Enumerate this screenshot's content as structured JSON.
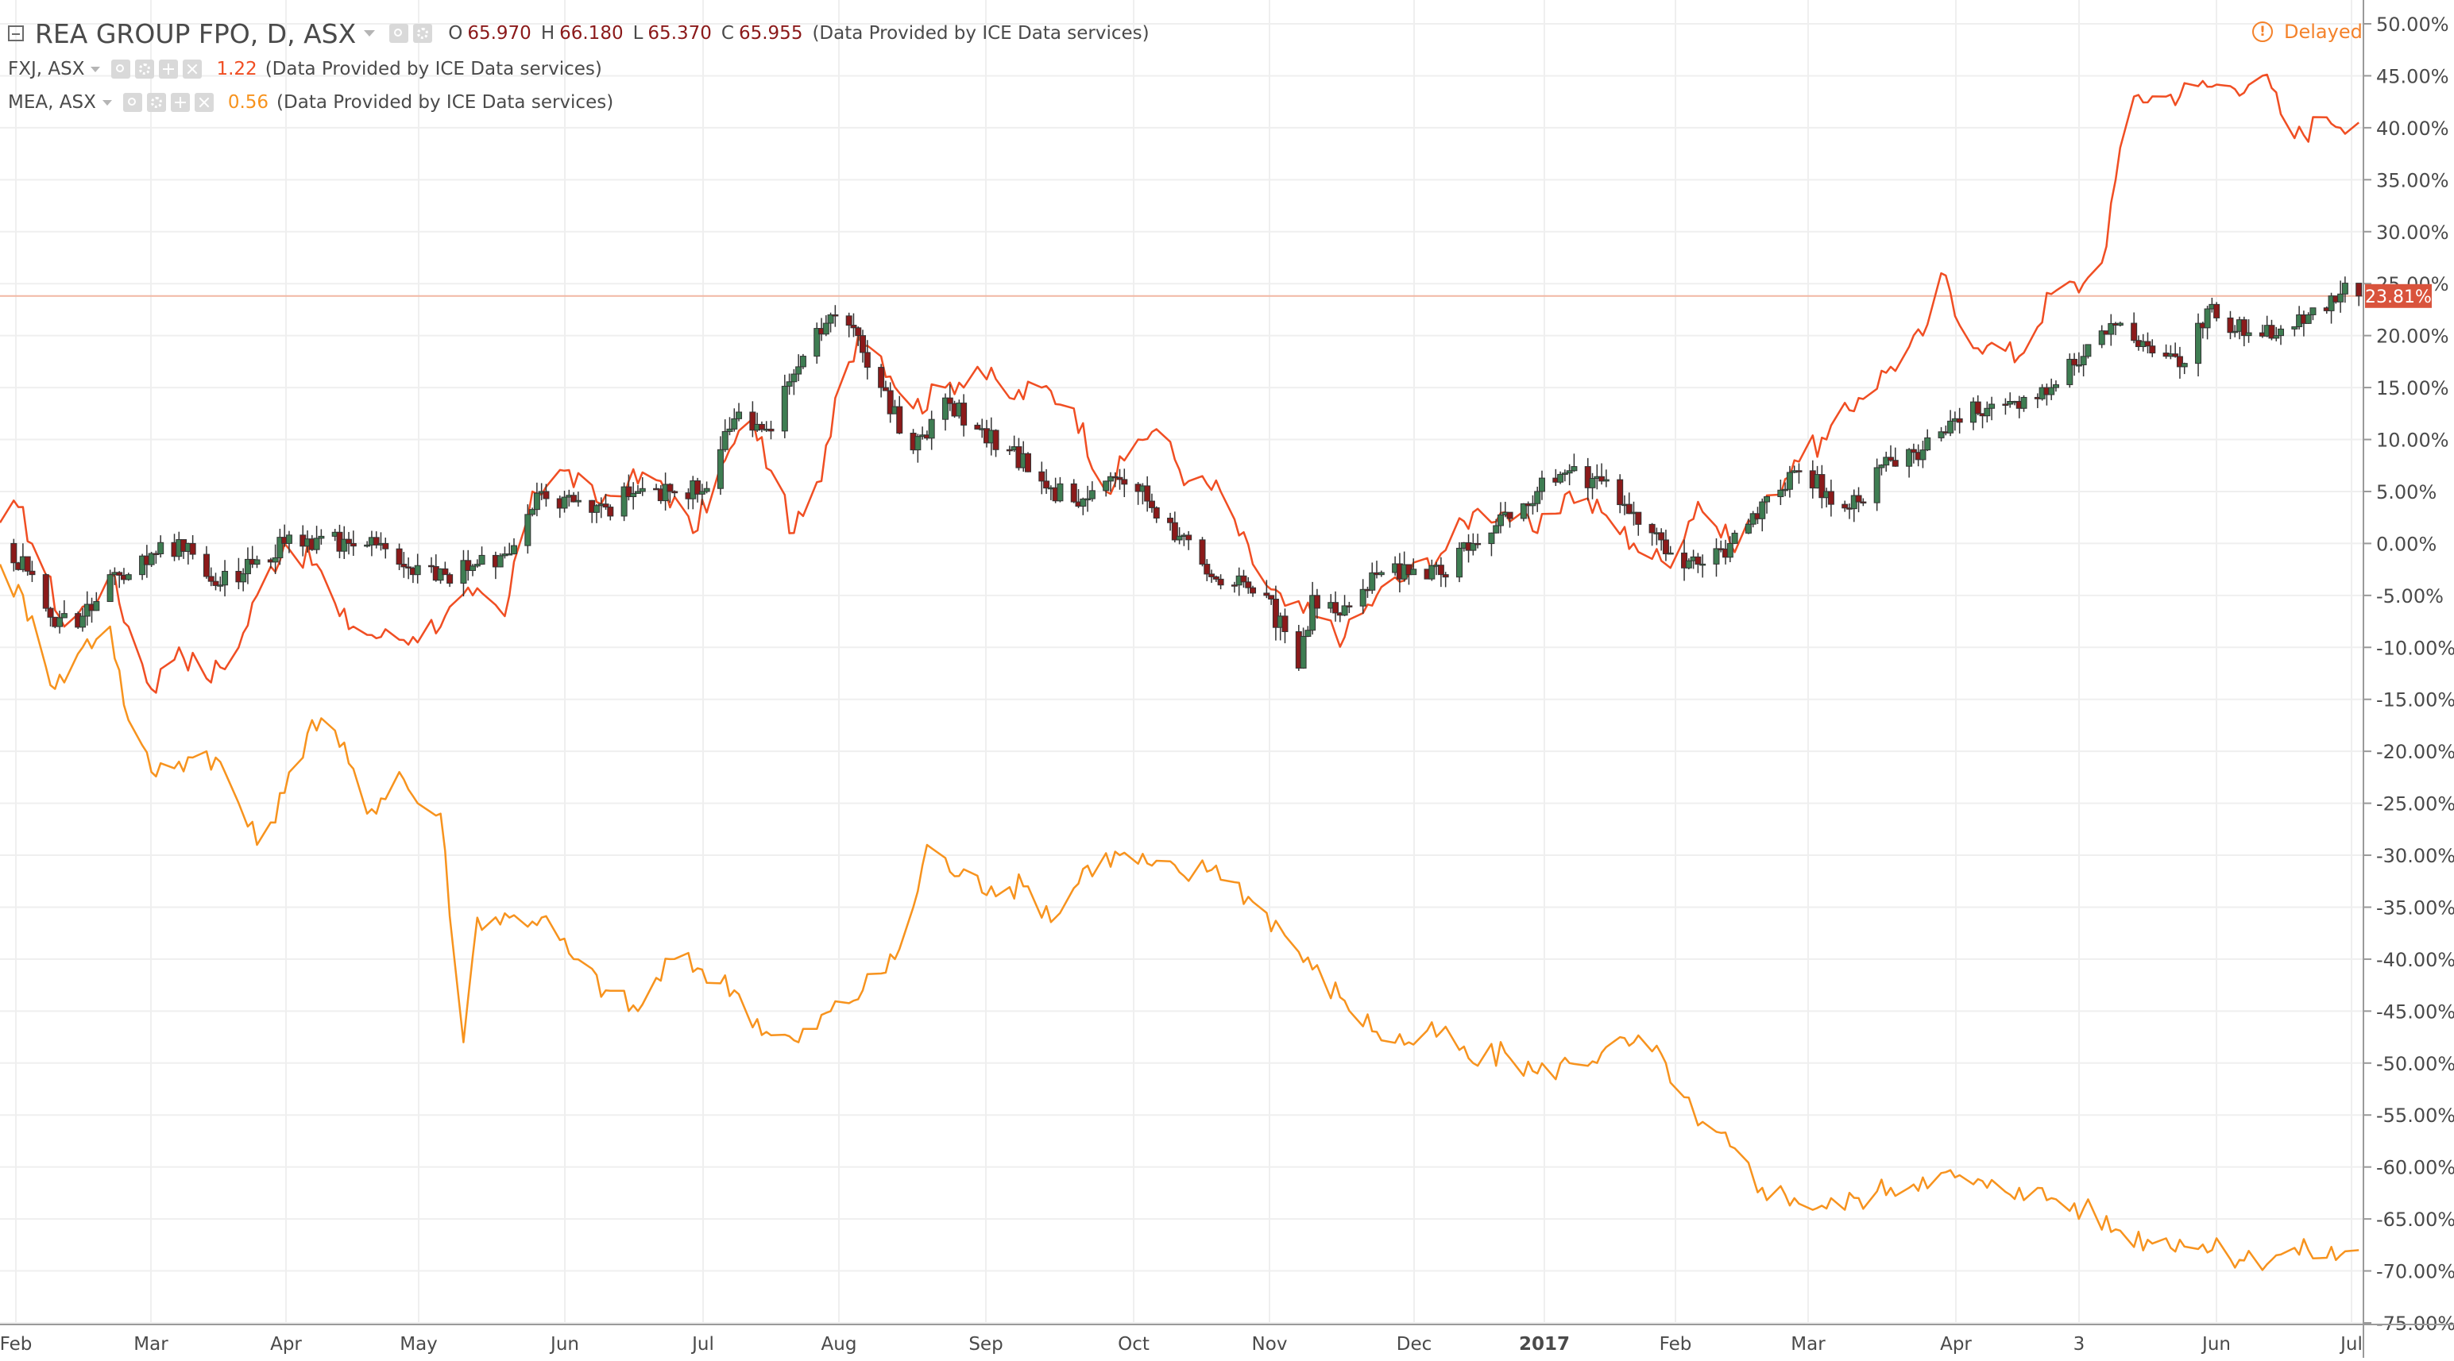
{
  "header": {
    "symbol_title": "REA GROUP FPO, D, ASX",
    "ohlc": {
      "o_label": "O",
      "o_value": "65.970",
      "h_label": "H",
      "h_value": "66.180",
      "l_label": "L",
      "l_value": "65.370",
      "c_label": "C",
      "c_value": "65.955"
    },
    "provider": "(Data Provided by ICE Data services)",
    "delayed_label": "Delayed",
    "delayed_icon_glyph": "!"
  },
  "compare_series": [
    {
      "symbol": "FXJ, ASX",
      "value": "1.22",
      "provider": "(Data Provided by ICE Data services)",
      "color": "#f04e23"
    },
    {
      "symbol": "MEA, ASX",
      "value": "0.56",
      "provider": "(Data Provided by ICE Data services)",
      "color": "#f7931e"
    }
  ],
  "colors": {
    "rea_up": "#3e7d52",
    "rea_down": "#8b1a1a",
    "fxj_line": "#f04e23",
    "mea_line": "#f7931e",
    "price_marker": "#d9533c",
    "grid": "#efefef",
    "axis_text": "#4a4a4a",
    "icon_gray": "#d9d9d9"
  },
  "chart_data": {
    "type": "line",
    "x_axis": {
      "tick_labels": [
        "Feb",
        "Mar",
        "Apr",
        "May",
        "Jun",
        "Jul",
        "Aug",
        "Sep",
        "Oct",
        "Nov",
        "Dec",
        "2017",
        "Feb",
        "Mar",
        "Apr",
        "3",
        "Jun",
        "Jul"
      ],
      "start": "2016-01-29",
      "end": "2017-06-27"
    },
    "y_axis": {
      "unit": "%",
      "position": "right",
      "min": -75,
      "max": 50,
      "tick_labels": [
        "50.00%",
        "45.00%",
        "40.00%",
        "35.00%",
        "30.00%",
        "25.00%",
        "20.00%",
        "15.00%",
        "10.00%",
        "5.00%",
        "0.00%",
        "-5.00%",
        "-10.00%",
        "-15.00%",
        "-20.00%",
        "-25.00%",
        "-30.00%",
        "-35.00%",
        "-40.00%",
        "-45.00%",
        "-50.00%",
        "-55.00%",
        "-60.00%",
        "-65.00%",
        "-70.00%",
        "-75.00%"
      ]
    },
    "grid": true,
    "price_marker": {
      "label": "23.81%",
      "value": 23.81
    },
    "series": [
      {
        "name": "REA GROUP FPO",
        "render": "candles",
        "points": [
          [
            "2016-01-29",
            0
          ],
          [
            "2016-02-05",
            -3
          ],
          [
            "2016-02-10",
            -8
          ],
          [
            "2016-02-16",
            -7
          ],
          [
            "2016-02-22",
            -3
          ],
          [
            "2016-02-26",
            -3
          ],
          [
            "2016-03-03",
            -1
          ],
          [
            "2016-03-10",
            0
          ],
          [
            "2016-03-17",
            -4
          ],
          [
            "2016-03-24",
            -2
          ],
          [
            "2016-03-31",
            0
          ],
          [
            "2016-04-07",
            0.5
          ],
          [
            "2016-04-14",
            0
          ],
          [
            "2016-04-21",
            0
          ],
          [
            "2016-04-28",
            -3
          ],
          [
            "2016-05-05",
            -3
          ],
          [
            "2016-05-12",
            -2
          ],
          [
            "2016-05-19",
            -1
          ],
          [
            "2016-05-26",
            5
          ],
          [
            "2016-06-02",
            4
          ],
          [
            "2016-06-09",
            3.5
          ],
          [
            "2016-06-16",
            5
          ],
          [
            "2016-06-23",
            5
          ],
          [
            "2016-06-30",
            5
          ],
          [
            "2016-07-07",
            12
          ],
          [
            "2016-07-14",
            11
          ],
          [
            "2016-07-21",
            17
          ],
          [
            "2016-07-28",
            22
          ],
          [
            "2016-08-03",
            20
          ],
          [
            "2016-08-08",
            15
          ],
          [
            "2016-08-15",
            9
          ],
          [
            "2016-08-22",
            14
          ],
          [
            "2016-08-29",
            11
          ],
          [
            "2016-09-05",
            9
          ],
          [
            "2016-09-12",
            6
          ],
          [
            "2016-09-19",
            4
          ],
          [
            "2016-09-26",
            6
          ],
          [
            "2016-10-03",
            5
          ],
          [
            "2016-10-10",
            2
          ],
          [
            "2016-10-17",
            -2
          ],
          [
            "2016-10-24",
            -4
          ],
          [
            "2016-10-31",
            -5
          ],
          [
            "2016-11-07",
            -12
          ],
          [
            "2016-11-10",
            -5
          ],
          [
            "2016-11-17",
            -6
          ],
          [
            "2016-11-24",
            -3
          ],
          [
            "2016-12-01",
            -3
          ],
          [
            "2016-12-08",
            -3
          ],
          [
            "2016-12-15",
            0
          ],
          [
            "2016-12-22",
            3
          ],
          [
            "2016-12-29",
            5
          ],
          [
            "2017-01-05",
            7
          ],
          [
            "2017-01-12",
            6
          ],
          [
            "2017-01-19",
            3
          ],
          [
            "2017-01-26",
            -1
          ],
          [
            "2017-02-02",
            -2
          ],
          [
            "2017-02-09",
            0
          ],
          [
            "2017-02-16",
            4
          ],
          [
            "2017-02-23",
            7
          ],
          [
            "2017-03-02",
            5
          ],
          [
            "2017-03-09",
            4
          ],
          [
            "2017-03-16",
            8
          ],
          [
            "2017-03-23",
            9
          ],
          [
            "2017-03-30",
            12
          ],
          [
            "2017-04-06",
            13
          ],
          [
            "2017-04-13",
            13
          ],
          [
            "2017-04-20",
            15
          ],
          [
            "2017-04-27",
            18
          ],
          [
            "2017-05-04",
            21
          ],
          [
            "2017-05-11",
            19
          ],
          [
            "2017-05-18",
            17
          ],
          [
            "2017-05-25",
            23
          ],
          [
            "2017-06-01",
            20
          ],
          [
            "2017-06-08",
            20
          ],
          [
            "2017-06-15",
            22
          ],
          [
            "2017-06-22",
            24
          ],
          [
            "2017-06-26",
            23.81
          ]
        ]
      },
      {
        "name": "FXJ, ASX",
        "render": "line",
        "points": [
          [
            "2016-01-29",
            2
          ],
          [
            "2016-02-02",
            3.5
          ],
          [
            "2016-02-08",
            -3
          ],
          [
            "2016-02-12",
            -8
          ],
          [
            "2016-02-17",
            -6
          ],
          [
            "2016-02-22",
            -3
          ],
          [
            "2016-02-26",
            -8
          ],
          [
            "2016-03-02",
            -14
          ],
          [
            "2016-03-08",
            -10
          ],
          [
            "2016-03-14",
            -13
          ],
          [
            "2016-03-21",
            -10
          ],
          [
            "2016-03-25",
            -5
          ],
          [
            "2016-03-31",
            0
          ],
          [
            "2016-04-07",
            -2
          ],
          [
            "2016-04-12",
            -7
          ],
          [
            "2016-04-15",
            -8
          ],
          [
            "2016-04-21",
            -9
          ],
          [
            "2016-04-28",
            -9
          ],
          [
            "2016-05-05",
            -7
          ],
          [
            "2016-05-11",
            -5
          ],
          [
            "2016-05-18",
            -7
          ],
          [
            "2016-05-24",
            5
          ],
          [
            "2016-05-31",
            7
          ],
          [
            "2016-06-07",
            4
          ],
          [
            "2016-06-14",
            6
          ],
          [
            "2016-06-21",
            6
          ],
          [
            "2016-06-28",
            1
          ],
          [
            "2016-07-05",
            8
          ],
          [
            "2016-07-11",
            12
          ],
          [
            "2016-07-15",
            7
          ],
          [
            "2016-07-20",
            1
          ],
          [
            "2016-07-26",
            6
          ],
          [
            "2016-07-29",
            14
          ],
          [
            "2016-08-03",
            20
          ],
          [
            "2016-08-08",
            18
          ],
          [
            "2016-08-15",
            13
          ],
          [
            "2016-08-22",
            15
          ],
          [
            "2016-08-29",
            17
          ],
          [
            "2016-09-05",
            14
          ],
          [
            "2016-09-12",
            15
          ],
          [
            "2016-09-19",
            13
          ],
          [
            "2016-09-26",
            5
          ],
          [
            "2016-10-03",
            10
          ],
          [
            "2016-10-07",
            11
          ],
          [
            "2016-10-14",
            6
          ],
          [
            "2016-10-21",
            5
          ],
          [
            "2016-10-28",
            -2
          ],
          [
            "2016-11-04",
            -6
          ],
          [
            "2016-11-10",
            -7
          ],
          [
            "2016-11-17",
            -9
          ],
          [
            "2016-11-24",
            -5
          ],
          [
            "2016-12-01",
            -3
          ],
          [
            "2016-12-08",
            -1
          ],
          [
            "2016-12-15",
            3
          ],
          [
            "2016-12-22",
            3
          ],
          [
            "2016-12-29",
            1
          ],
          [
            "2017-01-05",
            5
          ],
          [
            "2017-01-12",
            3
          ],
          [
            "2017-01-19",
            0
          ],
          [
            "2017-01-26",
            -2
          ],
          [
            "2017-02-02",
            4
          ],
          [
            "2017-02-09",
            0
          ],
          [
            "2017-02-16",
            3
          ],
          [
            "2017-02-23",
            8
          ],
          [
            "2017-03-02",
            10
          ],
          [
            "2017-03-09",
            14
          ],
          [
            "2017-03-16",
            17
          ],
          [
            "2017-03-23",
            20
          ],
          [
            "2017-03-27",
            26
          ],
          [
            "2017-03-31",
            21
          ],
          [
            "2017-04-06",
            19
          ],
          [
            "2017-04-13",
            18
          ],
          [
            "2017-04-20",
            24
          ],
          [
            "2017-04-27",
            25
          ],
          [
            "2017-05-01",
            27
          ],
          [
            "2017-05-04",
            35
          ],
          [
            "2017-05-08",
            43
          ],
          [
            "2017-05-15",
            43
          ],
          [
            "2017-05-22",
            44
          ],
          [
            "2017-05-29",
            44
          ],
          [
            "2017-06-05",
            45
          ],
          [
            "2017-06-12",
            39
          ],
          [
            "2017-06-19",
            41
          ],
          [
            "2017-06-26",
            40.5
          ]
        ]
      },
      {
        "name": "MEA, ASX",
        "render": "line",
        "points": [
          [
            "2016-01-29",
            -2
          ],
          [
            "2016-02-05",
            -7
          ],
          [
            "2016-02-10",
            -14
          ],
          [
            "2016-02-16",
            -10
          ],
          [
            "2016-02-22",
            -8
          ],
          [
            "2016-02-26",
            -17
          ],
          [
            "2016-03-02",
            -22
          ],
          [
            "2016-03-08",
            -21
          ],
          [
            "2016-03-14",
            -20
          ],
          [
            "2016-03-18",
            -22
          ],
          [
            "2016-03-25",
            -29
          ],
          [
            "2016-03-31",
            -24
          ],
          [
            "2016-04-06",
            -17
          ],
          [
            "2016-04-11",
            -18
          ],
          [
            "2016-04-18",
            -26
          ],
          [
            "2016-04-25",
            -22
          ],
          [
            "2016-04-29",
            -25
          ],
          [
            "2016-05-04",
            -26
          ],
          [
            "2016-05-09",
            -48
          ],
          [
            "2016-05-12",
            -36
          ],
          [
            "2016-05-19",
            -36
          ],
          [
            "2016-05-26",
            -36
          ],
          [
            "2016-06-02",
            -40
          ],
          [
            "2016-06-09",
            -43
          ],
          [
            "2016-06-16",
            -45
          ],
          [
            "2016-06-23",
            -40
          ],
          [
            "2016-06-30",
            -41
          ],
          [
            "2016-07-07",
            -43
          ],
          [
            "2016-07-14",
            -47
          ],
          [
            "2016-07-21",
            -48
          ],
          [
            "2016-07-28",
            -45
          ],
          [
            "2016-08-04",
            -43
          ],
          [
            "2016-08-11",
            -40
          ],
          [
            "2016-08-15",
            -35
          ],
          [
            "2016-08-18",
            -29
          ],
          [
            "2016-08-25",
            -32
          ],
          [
            "2016-09-01",
            -33
          ],
          [
            "2016-09-08",
            -33
          ],
          [
            "2016-09-15",
            -36
          ],
          [
            "2016-09-22",
            -31
          ],
          [
            "2016-09-29",
            -30
          ],
          [
            "2016-10-06",
            -31
          ],
          [
            "2016-10-13",
            -32
          ],
          [
            "2016-10-20",
            -31
          ],
          [
            "2016-10-27",
            -34
          ],
          [
            "2016-11-03",
            -37
          ],
          [
            "2016-11-10",
            -41
          ],
          [
            "2016-11-17",
            -44
          ],
          [
            "2016-11-24",
            -47
          ],
          [
            "2016-12-01",
            -48
          ],
          [
            "2016-12-08",
            -47
          ],
          [
            "2016-12-15",
            -50
          ],
          [
            "2016-12-22",
            -49
          ],
          [
            "2016-12-29",
            -51
          ],
          [
            "2017-01-05",
            -50
          ],
          [
            "2017-01-12",
            -49
          ],
          [
            "2017-01-19",
            -48
          ],
          [
            "2017-01-26",
            -50
          ],
          [
            "2017-02-02",
            -56
          ],
          [
            "2017-02-09",
            -58
          ],
          [
            "2017-02-16",
            -62
          ],
          [
            "2017-02-23",
            -63
          ],
          [
            "2017-03-02",
            -64
          ],
          [
            "2017-03-09",
            -63
          ],
          [
            "2017-03-16",
            -62
          ],
          [
            "2017-03-23",
            -61
          ],
          [
            "2017-03-30",
            -61
          ],
          [
            "2017-04-06",
            -62
          ],
          [
            "2017-04-13",
            -62
          ],
          [
            "2017-04-20",
            -63
          ],
          [
            "2017-04-27",
            -64
          ],
          [
            "2017-05-04",
            -66
          ],
          [
            "2017-05-11",
            -67
          ],
          [
            "2017-05-18",
            -67
          ],
          [
            "2017-05-25",
            -68
          ],
          [
            "2017-06-01",
            -69
          ],
          [
            "2017-06-08",
            -68.5
          ],
          [
            "2017-06-15",
            -68
          ],
          [
            "2017-06-22",
            -68.5
          ],
          [
            "2017-06-26",
            -68
          ]
        ]
      }
    ]
  }
}
